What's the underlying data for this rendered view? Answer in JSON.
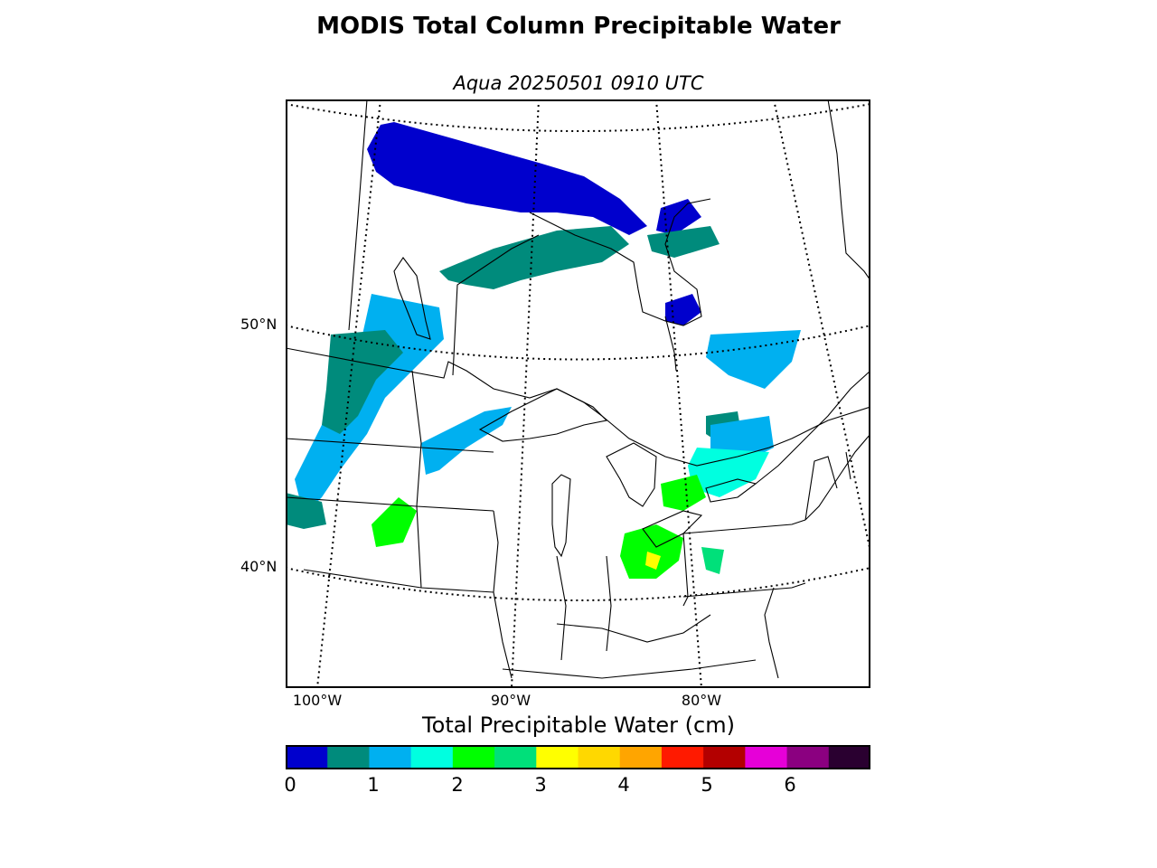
{
  "title": "MODIS Total Column Precipitable Water",
  "subtitle": "Aqua 20250501 0910 UTC",
  "map": {
    "lat_labels": [
      "50°N",
      "40°N"
    ],
    "lon_labels": [
      "100°W",
      "90°W",
      "80°W"
    ]
  },
  "colorbar": {
    "title": "Total Precipitable Water (cm)",
    "tick_labels": [
      "0",
      "1",
      "2",
      "3",
      "4",
      "5",
      "6"
    ],
    "colors": [
      "#0000cd",
      "#008b7c",
      "#00b0f0",
      "#00ffe0",
      "#00ff00",
      "#00e07a",
      "#ffff00",
      "#ffd800",
      "#ffa500",
      "#ff1a00",
      "#b30000",
      "#e600d8",
      "#8b0080",
      "#2a0030"
    ]
  }
}
